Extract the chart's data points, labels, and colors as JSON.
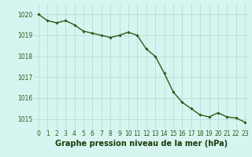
{
  "x": [
    0,
    1,
    2,
    3,
    4,
    5,
    6,
    7,
    8,
    9,
    10,
    11,
    12,
    13,
    14,
    15,
    16,
    17,
    18,
    19,
    20,
    21,
    22,
    23
  ],
  "y": [
    1020.0,
    1019.7,
    1019.6,
    1019.7,
    1019.5,
    1019.2,
    1019.1,
    1019.0,
    1018.9,
    1019.0,
    1019.15,
    1019.0,
    1018.35,
    1018.0,
    1017.2,
    1016.3,
    1015.8,
    1015.5,
    1015.2,
    1015.1,
    1015.3,
    1015.1,
    1015.05,
    1014.85
  ],
  "line_color": "#2d5a1b",
  "marker": "D",
  "marker_size": 1.8,
  "bg_color": "#d6f5f0",
  "grid_color": "#b8ddd8",
  "title": "Graphe pression niveau de la mer (hPa)",
  "title_color": "#1a3a0a",
  "yticks": [
    1015,
    1016,
    1017,
    1018,
    1019,
    1020
  ],
  "xticks": [
    0,
    1,
    2,
    3,
    4,
    5,
    6,
    7,
    8,
    9,
    10,
    11,
    12,
    13,
    14,
    15,
    16,
    17,
    18,
    19,
    20,
    21,
    22,
    23
  ],
  "ylim": [
    1014.5,
    1020.5
  ],
  "xlim": [
    -0.5,
    23.5
  ],
  "tick_color": "#2d5a1b",
  "tick_fontsize": 5.5,
  "title_fontsize": 7.0,
  "line_width": 1.0
}
